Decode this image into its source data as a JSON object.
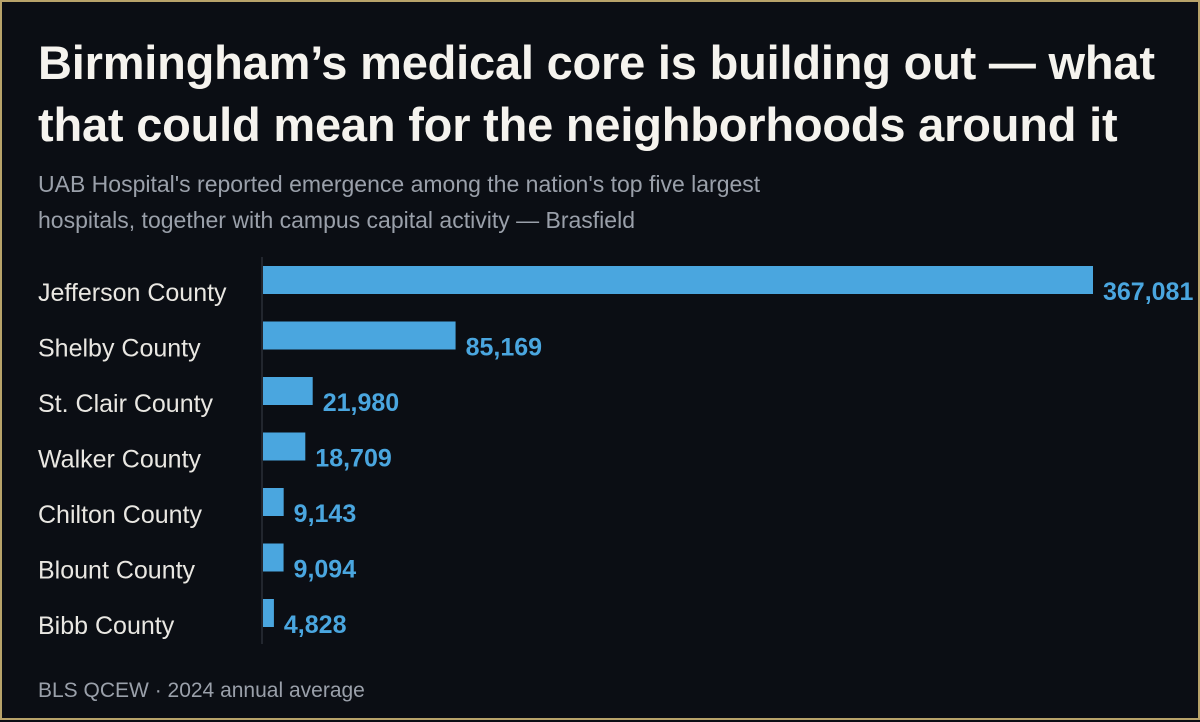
{
  "header": {
    "title": "Birmingham’s medical core is building out — what that could mean for the neighborhoods around it",
    "subtitle": "UAB Hospital's reported emergence among the nation's top five largest hospitals, together with campus capital activity — Brasfield"
  },
  "footer": {
    "source": "BLS QCEW · 2024 annual average"
  },
  "colors": {
    "background": "#0b0e14",
    "border": "#b8a36a",
    "bar": "#4aa6df",
    "value_label": "#4aa6df",
    "category_label": "#e9e7e2",
    "axis_line": "#3a3f48"
  },
  "chart_data": {
    "type": "bar",
    "orientation": "horizontal",
    "categories": [
      "Jefferson County",
      "Shelby County",
      "St. Clair County",
      "Walker County",
      "Chilton County",
      "Blount County",
      "Bibb County"
    ],
    "values": [
      367081,
      85169,
      21980,
      18709,
      9143,
      9094,
      4828
    ],
    "value_labels": [
      "367,081",
      "85,169",
      "21,980",
      "18,709",
      "9,143",
      "9,094",
      "4,828"
    ],
    "title": "",
    "xlabel": "",
    "ylabel": "",
    "grid": false,
    "legend": "none"
  }
}
